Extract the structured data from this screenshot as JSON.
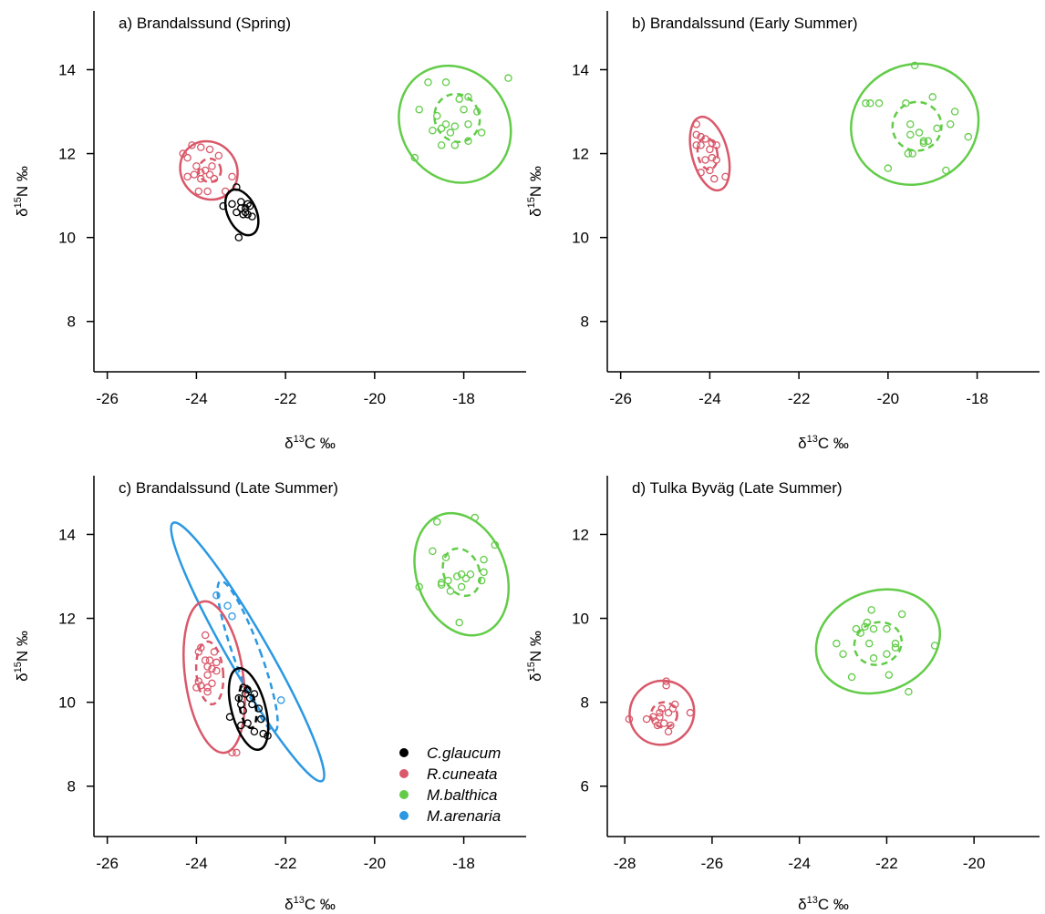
{
  "colors": {
    "C.glaucum": "#000000",
    "R.cuneata": "#d9586a",
    "M.balthica": "#62cc48",
    "M.arenaria": "#2a98e2"
  },
  "legend": {
    "placement": "bottom-right of panel c",
    "entries": [
      "C.glaucum",
      "R.cuneata",
      "M.balthica",
      "M.arenaria"
    ]
  },
  "chart_data": [
    {
      "type": "scatter",
      "panel": "a",
      "title": "a) Brandalssund (Spring)",
      "xlabel_prefix": "δ",
      "xlabel_sup": "13",
      "xlabel_suffix": "C ‰",
      "ylabel_prefix": "δ",
      "ylabel_sup": "15",
      "ylabel_suffix": "N ‰",
      "xlim": [
        -26.3,
        -16.6
      ],
      "ylim": [
        6.8,
        15.4
      ],
      "xticks": [
        -26,
        -24,
        -22,
        -20,
        -18
      ],
      "yticks": [
        8,
        10,
        12,
        14
      ],
      "series": [
        {
          "name": "R.cuneata",
          "points": [
            [
              -24.3,
              12.0
            ],
            [
              -24.1,
              12.2
            ],
            [
              -23.9,
              12.15
            ],
            [
              -23.7,
              12.1
            ],
            [
              -23.5,
              11.95
            ],
            [
              -24.2,
              11.9
            ],
            [
              -24.0,
              11.7
            ],
            [
              -23.9,
              11.55
            ],
            [
              -23.8,
              11.6
            ],
            [
              -23.7,
              11.5
            ],
            [
              -23.65,
              11.7
            ],
            [
              -24.05,
              11.5
            ],
            [
              -23.9,
              11.4
            ],
            [
              -23.6,
              11.4
            ],
            [
              -23.2,
              11.45
            ],
            [
              -23.95,
              11.1
            ],
            [
              -23.75,
              11.1
            ],
            [
              -23.35,
              11.1
            ],
            [
              -24.2,
              11.45
            ]
          ],
          "sea": {
            "cx": -23.7,
            "cy": 11.6,
            "rx": 0.25,
            "ry": 0.28,
            "angle": -5
          },
          "ellipse": {
            "cx": -23.72,
            "cy": 11.6,
            "rx": 0.62,
            "ry": 0.72,
            "angle": -40
          }
        },
        {
          "name": "C.glaucum",
          "points": [
            [
              -23.1,
              11.2
            ],
            [
              -23.4,
              10.75
            ],
            [
              -23.2,
              10.8
            ],
            [
              -23.0,
              10.85
            ],
            [
              -22.9,
              10.7
            ],
            [
              -22.85,
              10.8
            ],
            [
              -23.1,
              10.6
            ],
            [
              -22.95,
              10.55
            ],
            [
              -22.85,
              10.55
            ],
            [
              -22.75,
              10.5
            ],
            [
              -23.0,
              10.7
            ],
            [
              -22.9,
              10.6
            ],
            [
              -23.05,
              10.0
            ],
            [
              -22.8,
              10.75
            ]
          ],
          "sea": null,
          "ellipse": {
            "cx": -22.98,
            "cy": 10.6,
            "rx": 0.32,
            "ry": 0.58,
            "angle": -25
          }
        },
        {
          "name": "M.balthica",
          "points": [
            [
              -18.8,
              13.7
            ],
            [
              -18.4,
              13.7
            ],
            [
              -18.1,
              13.3
            ],
            [
              -17.9,
              13.35
            ],
            [
              -17.7,
              13.0
            ],
            [
              -17.0,
              13.8
            ],
            [
              -19.0,
              13.05
            ],
            [
              -18.6,
              12.9
            ],
            [
              -18.4,
              12.7
            ],
            [
              -18.5,
              12.6
            ],
            [
              -18.3,
              12.5
            ],
            [
              -18.2,
              12.65
            ],
            [
              -17.9,
              12.7
            ],
            [
              -17.6,
              12.5
            ],
            [
              -18.7,
              12.55
            ],
            [
              -18.5,
              12.2
            ],
            [
              -18.2,
              12.2
            ],
            [
              -17.9,
              12.3
            ],
            [
              -19.1,
              11.9
            ],
            [
              -18.0,
              13.05
            ]
          ],
          "sea": {
            "cx": -18.15,
            "cy": 12.85,
            "rx": 0.5,
            "ry": 0.58,
            "angle": -25
          },
          "ellipse": {
            "cx": -18.2,
            "cy": 12.7,
            "rx": 1.2,
            "ry": 1.45,
            "angle": -35
          }
        }
      ]
    },
    {
      "type": "scatter",
      "panel": "b",
      "title": "b) Brandalssund (Early Summer)",
      "xlabel_prefix": "δ",
      "xlabel_sup": "13",
      "xlabel_suffix": "C ‰",
      "ylabel_prefix": "δ",
      "ylabel_sup": "15",
      "ylabel_suffix": "N ‰",
      "xlim": [
        -26.3,
        -16.6
      ],
      "ylim": [
        6.8,
        15.4
      ],
      "xticks": [
        -26,
        -24,
        -22,
        -20,
        -18
      ],
      "yticks": [
        8,
        10,
        12,
        14
      ],
      "series": [
        {
          "name": "R.cuneata",
          "points": [
            [
              -24.3,
              12.7
            ],
            [
              -24.3,
              12.45
            ],
            [
              -24.2,
              12.4
            ],
            [
              -24.1,
              12.35
            ],
            [
              -24.2,
              12.2
            ],
            [
              -23.95,
              12.25
            ],
            [
              -23.85,
              12.2
            ],
            [
              -24.0,
              12.1
            ],
            [
              -23.95,
              11.9
            ],
            [
              -24.1,
              11.85
            ],
            [
              -23.85,
              11.85
            ],
            [
              -24.2,
              11.55
            ],
            [
              -24.0,
              11.6
            ],
            [
              -23.9,
              11.4
            ],
            [
              -23.65,
              11.45
            ],
            [
              -24.3,
              12.2
            ]
          ],
          "sea": {
            "cx": -24.05,
            "cy": 12.0,
            "rx": 0.22,
            "ry": 0.38,
            "angle": -10
          },
          "ellipse": {
            "cx": -24.0,
            "cy": 12.0,
            "rx": 0.4,
            "ry": 0.9,
            "angle": -15
          }
        },
        {
          "name": "M.balthica",
          "points": [
            [
              -19.4,
              14.1
            ],
            [
              -20.4,
              13.2
            ],
            [
              -20.2,
              13.2
            ],
            [
              -20.5,
              13.2
            ],
            [
              -19.6,
              13.2
            ],
            [
              -19.0,
              13.35
            ],
            [
              -18.5,
              13.0
            ],
            [
              -19.5,
              12.7
            ],
            [
              -19.3,
              12.5
            ],
            [
              -18.9,
              12.6
            ],
            [
              -18.6,
              12.7
            ],
            [
              -19.2,
              12.3
            ],
            [
              -19.1,
              12.3
            ],
            [
              -19.55,
              12.0
            ],
            [
              -19.45,
              12.0
            ],
            [
              -18.2,
              12.4
            ],
            [
              -20.0,
              11.65
            ],
            [
              -18.7,
              11.6
            ],
            [
              -19.5,
              12.45
            ],
            [
              -19.2,
              12.25
            ]
          ],
          "sea": {
            "cx": -19.35,
            "cy": 12.65,
            "rx": 0.55,
            "ry": 0.58,
            "angle": -30
          },
          "ellipse": {
            "cx": -19.4,
            "cy": 12.7,
            "rx": 1.45,
            "ry": 1.42,
            "angle": -25
          }
        }
      ]
    },
    {
      "type": "scatter",
      "panel": "c",
      "title": "c) Brandalssund (Late Summer)",
      "xlabel_prefix": "δ",
      "xlabel_sup": "13",
      "xlabel_suffix": "C ‰",
      "ylabel_prefix": "δ",
      "ylabel_sup": "15",
      "ylabel_suffix": "N ‰",
      "xlim": [
        -26.3,
        -16.6
      ],
      "ylim": [
        6.8,
        15.4
      ],
      "xticks": [
        -26,
        -24,
        -22,
        -20,
        -18
      ],
      "yticks": [
        8,
        10,
        12,
        14
      ],
      "series": [
        {
          "name": "M.balthica",
          "points": [
            [
              -18.6,
              14.3
            ],
            [
              -17.75,
              14.4
            ],
            [
              -18.7,
              13.6
            ],
            [
              -18.4,
              13.45
            ],
            [
              -17.3,
              13.75
            ],
            [
              -17.55,
              13.4
            ],
            [
              -18.15,
              13.0
            ],
            [
              -17.85,
              13.05
            ],
            [
              -18.05,
              13.05
            ],
            [
              -17.55,
              13.1
            ],
            [
              -18.5,
              12.85
            ],
            [
              -18.35,
              12.9
            ],
            [
              -17.95,
              12.95
            ],
            [
              -17.6,
              12.9
            ],
            [
              -18.05,
              12.75
            ],
            [
              -18.3,
              12.65
            ],
            [
              -18.1,
              11.9
            ],
            [
              -19.0,
              12.75
            ],
            [
              -18.5,
              12.8
            ]
          ],
          "sea": {
            "cx": -18.05,
            "cy": 13.1,
            "rx": 0.4,
            "ry": 0.58,
            "angle": -20
          },
          "ellipse": {
            "cx": -18.05,
            "cy": 13.05,
            "rx": 1.0,
            "ry": 1.5,
            "angle": -20
          }
        },
        {
          "name": "M.arenaria",
          "points": [
            [
              -23.55,
              12.55
            ],
            [
              -23.3,
              12.3
            ],
            [
              -23.2,
              12.05
            ],
            [
              -22.1,
              10.05
            ]
          ],
          "sea": {
            "cx": -22.85,
            "cy": 11.1,
            "rx": 0.3,
            "ry": 1.9,
            "angle": -20
          },
          "ellipse": {
            "cx": -22.85,
            "cy": 11.2,
            "rx": 0.45,
            "ry": 3.55,
            "angle": -30
          }
        },
        {
          "name": "R.cuneata",
          "points": [
            [
              -23.8,
              11.6
            ],
            [
              -23.9,
              11.3
            ],
            [
              -23.95,
              11.2
            ],
            [
              -23.6,
              11.2
            ],
            [
              -23.8,
              11.0
            ],
            [
              -23.7,
              11.0
            ],
            [
              -23.55,
              10.95
            ],
            [
              -23.75,
              10.85
            ],
            [
              -23.65,
              10.8
            ],
            [
              -23.55,
              10.75
            ],
            [
              -23.75,
              10.65
            ],
            [
              -23.95,
              10.5
            ],
            [
              -23.9,
              10.4
            ],
            [
              -23.75,
              10.35
            ],
            [
              -23.65,
              10.45
            ],
            [
              -23.75,
              10.25
            ],
            [
              -23.2,
              8.8
            ],
            [
              -23.1,
              8.8
            ],
            [
              -24.0,
              10.35
            ]
          ],
          "sea": {
            "cx": -23.7,
            "cy": 10.7,
            "rx": 0.3,
            "ry": 0.75,
            "angle": -5
          },
          "ellipse": {
            "cx": -23.6,
            "cy": 10.6,
            "rx": 0.65,
            "ry": 1.82,
            "angle": -8
          }
        },
        {
          "name": "C.glaucum",
          "points": [
            [
              -22.95,
              10.35
            ],
            [
              -22.85,
              10.3
            ],
            [
              -22.9,
              10.2
            ],
            [
              -22.7,
              10.2
            ],
            [
              -23.05,
              10.1
            ],
            [
              -22.8,
              10.1
            ],
            [
              -23.0,
              9.95
            ],
            [
              -22.75,
              9.95
            ],
            [
              -22.95,
              9.8
            ],
            [
              -22.6,
              9.85
            ],
            [
              -23.25,
              9.65
            ],
            [
              -22.85,
              9.5
            ],
            [
              -23.0,
              9.45
            ],
            [
              -22.7,
              9.3
            ],
            [
              -22.5,
              9.25
            ],
            [
              -22.55,
              9.6
            ],
            [
              -22.4,
              9.2
            ]
          ],
          "sea": {
            "cx": -22.85,
            "cy": 9.9,
            "rx": 0.18,
            "ry": 0.52,
            "angle": -10
          },
          "ellipse": {
            "cx": -22.83,
            "cy": 9.84,
            "rx": 0.38,
            "ry": 1.0,
            "angle": -15
          }
        }
      ]
    },
    {
      "type": "scatter",
      "panel": "d",
      "title": "d) Tulka Byväg (Late Summer)",
      "xlabel_prefix": "δ",
      "xlabel_sup": "13",
      "xlabel_suffix": "C ‰",
      "ylabel_prefix": "δ",
      "ylabel_sup": "15",
      "ylabel_suffix": "N ‰",
      "xlim": [
        -28.4,
        -18.5
      ],
      "ylim": [
        4.8,
        13.4
      ],
      "xticks": [
        -28,
        -26,
        -24,
        -22,
        -20
      ],
      "yticks": [
        6,
        8,
        10,
        12
      ],
      "series": [
        {
          "name": "R.cuneata",
          "points": [
            [
              -27.05,
              8.5
            ],
            [
              -27.05,
              8.4
            ],
            [
              -26.85,
              7.95
            ],
            [
              -26.9,
              7.85
            ],
            [
              -27.15,
              7.85
            ],
            [
              -27.0,
              7.75
            ],
            [
              -27.35,
              7.65
            ],
            [
              -26.5,
              7.75
            ],
            [
              -27.2,
              7.65
            ],
            [
              -27.3,
              7.55
            ],
            [
              -27.1,
              7.5
            ],
            [
              -27.25,
              7.45
            ],
            [
              -27.0,
              7.3
            ],
            [
              -26.95,
              7.45
            ],
            [
              -27.9,
              7.6
            ],
            [
              -27.5,
              7.6
            ],
            [
              -27.2,
              7.75
            ]
          ],
          "sea": {
            "cx": -27.1,
            "cy": 7.7,
            "rx": 0.3,
            "ry": 0.3,
            "angle": 0
          },
          "ellipse": {
            "cx": -27.15,
            "cy": 7.75,
            "rx": 0.75,
            "ry": 0.75,
            "angle": -40
          }
        },
        {
          "name": "M.balthica",
          "points": [
            [
              -22.35,
              10.2
            ],
            [
              -21.65,
              10.1
            ],
            [
              -22.45,
              9.9
            ],
            [
              -22.5,
              9.8
            ],
            [
              -22.3,
              9.75
            ],
            [
              -22.0,
              9.75
            ],
            [
              -22.7,
              9.75
            ],
            [
              -22.6,
              9.65
            ],
            [
              -23.15,
              9.4
            ],
            [
              -22.4,
              9.4
            ],
            [
              -21.8,
              9.4
            ],
            [
              -20.9,
              9.35
            ],
            [
              -23.0,
              9.15
            ],
            [
              -22.3,
              9.05
            ],
            [
              -22.0,
              9.15
            ],
            [
              -21.8,
              9.3
            ],
            [
              -21.95,
              8.65
            ],
            [
              -22.8,
              8.6
            ],
            [
              -21.5,
              8.25
            ]
          ],
          "sea": {
            "cx": -22.2,
            "cy": 9.4,
            "rx": 0.55,
            "ry": 0.5,
            "angle": -20
          },
          "ellipse": {
            "cx": -22.2,
            "cy": 9.45,
            "rx": 1.45,
            "ry": 1.2,
            "angle": -20
          }
        }
      ]
    }
  ]
}
